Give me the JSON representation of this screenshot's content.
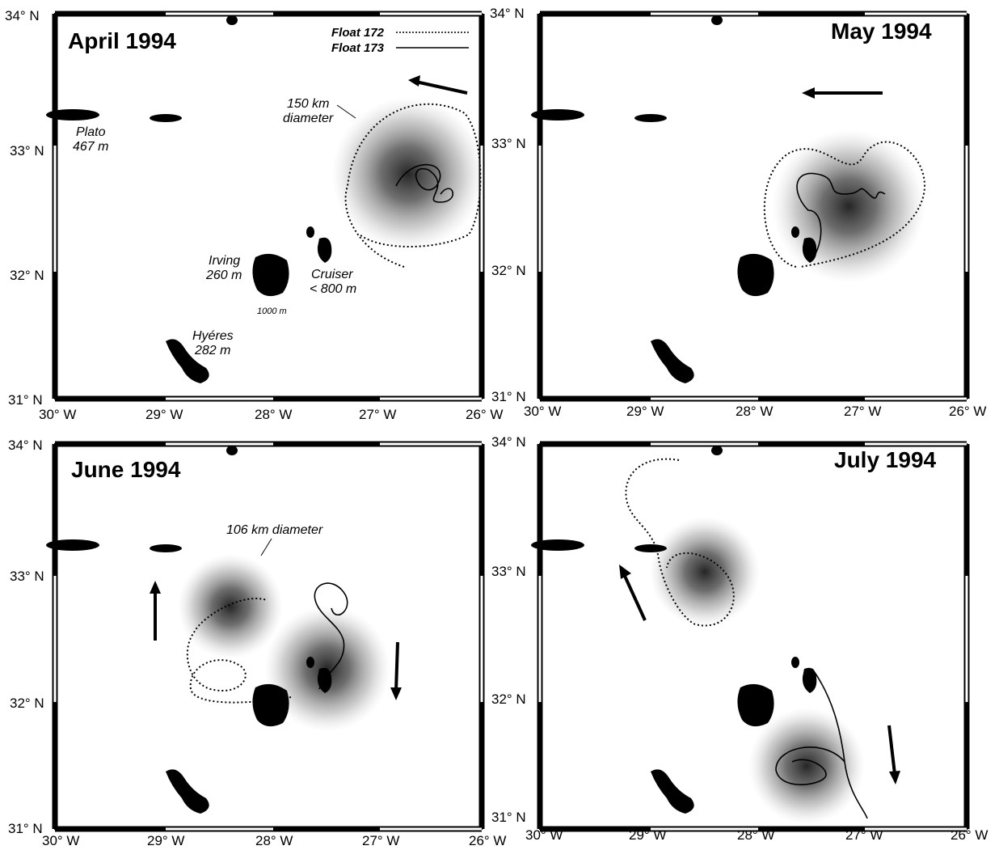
{
  "panels": [
    {
      "title": "April 1994"
    },
    {
      "title": "May 1994"
    },
    {
      "title": "June 1994"
    },
    {
      "title": "July 1994"
    }
  ],
  "axes": {
    "lat_labels": [
      "34° N",
      "33° N",
      "32° N",
      "31° N"
    ],
    "lon_labels": [
      "30° W",
      "29° W",
      "28° W",
      "27° W",
      "26° W"
    ]
  },
  "legend": {
    "float172": "Float 172",
    "float173": "Float 173"
  },
  "seamounts": {
    "plato_name": "Plato",
    "plato_depth": "467 m",
    "irving_name": "Irving",
    "irving_depth": "260 m",
    "cruiser_name": "Cruiser",
    "cruiser_depth": "< 800 m",
    "hyeres_name": "Hyéres",
    "hyeres_depth": "282 m",
    "contour_label": "1000 m"
  },
  "annotations": {
    "april_diameter_1": "150 km",
    "april_diameter_2": "diameter",
    "june_diameter": "106 km diameter"
  },
  "colors": {
    "land": "#000000",
    "eddy_core": "#1a1a1a"
  }
}
